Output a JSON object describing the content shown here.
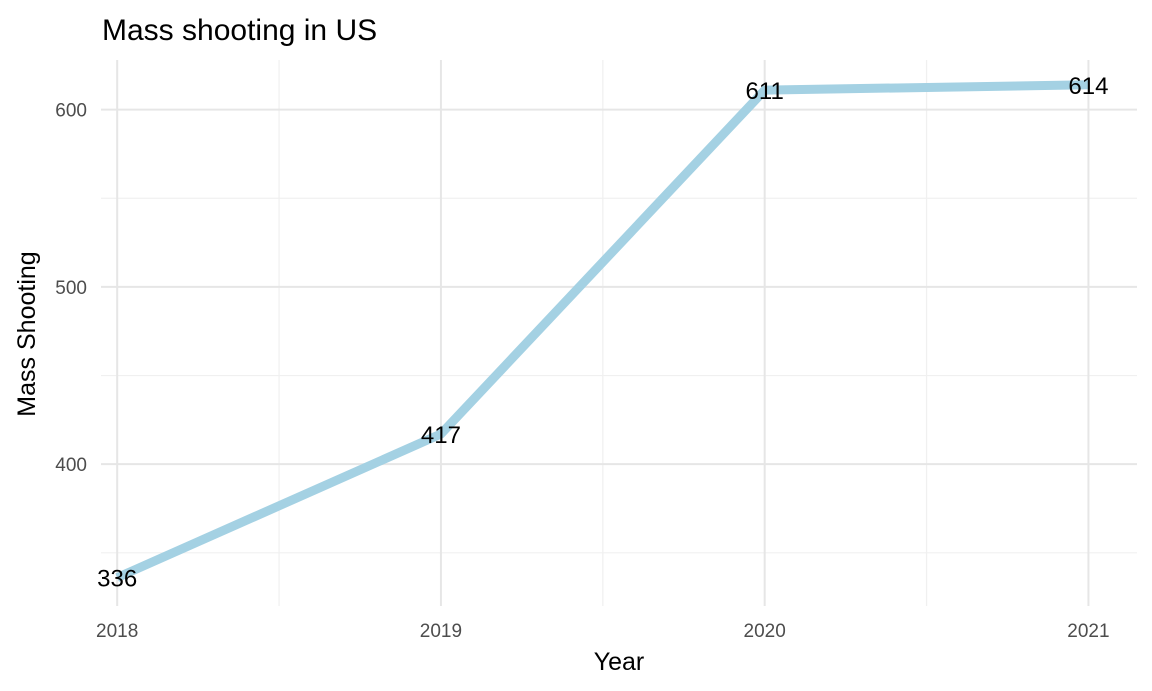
{
  "chart_data": {
    "type": "line",
    "title": "Mass shooting in US",
    "xlabel": "Year",
    "ylabel": "Mass Shooting",
    "x": [
      2018,
      2019,
      2020,
      2021
    ],
    "x_tick_labels": [
      "2018",
      "2019",
      "2020",
      "2021"
    ],
    "y_ticks": [
      400,
      500,
      600
    ],
    "y_tick_labels": [
      "400",
      "500",
      "600"
    ],
    "xlim": [
      2017.95,
      2021.15
    ],
    "ylim": [
      320,
      628
    ],
    "series": [
      {
        "values": [
          336,
          417,
          611,
          614
        ],
        "color": "#a4d1e3"
      }
    ],
    "data_labels": [
      "336",
      "417",
      "611",
      "614"
    ],
    "grid": true,
    "legend": "none"
  }
}
